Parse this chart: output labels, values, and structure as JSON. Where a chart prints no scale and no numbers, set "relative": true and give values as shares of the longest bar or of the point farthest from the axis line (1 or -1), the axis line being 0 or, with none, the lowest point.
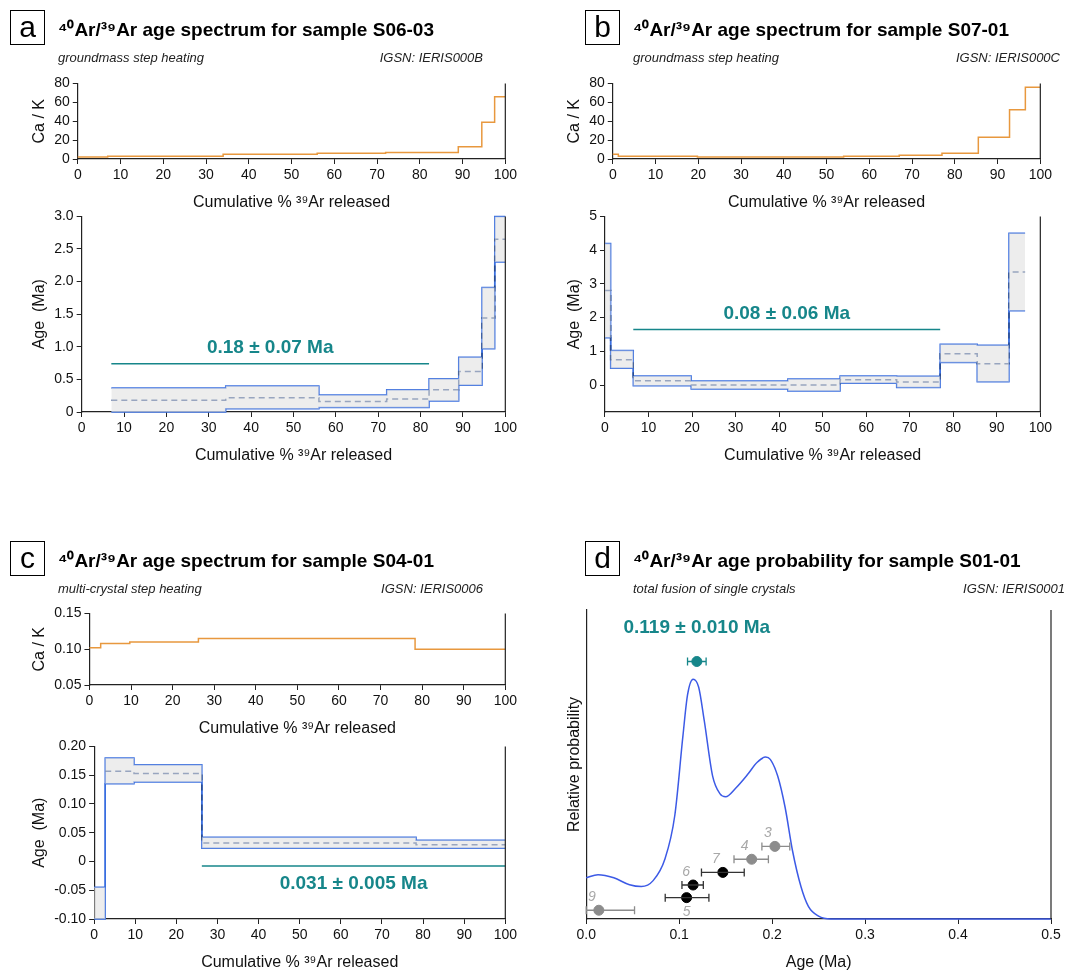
{
  "chart_data": [
    {
      "type": "step",
      "title": "⁴⁰Ar/³⁹Ar age spectrum for sample S06-03",
      "subtitle": "groundmass step heating",
      "annotations": [
        "a",
        "IGSN: IERIS000B"
      ],
      "xlabel": "Cumulative % ³⁹Ar released",
      "ylabel": "Ca / K",
      "xlim": [
        0,
        100
      ],
      "xticks": [
        0,
        10,
        20,
        30,
        40,
        50,
        60,
        70,
        80,
        90,
        100
      ],
      "ylim": [
        0,
        80
      ],
      "yticks": [
        0,
        20,
        40,
        60,
        80
      ],
      "series": [
        {
          "color": "#e8983e",
          "x": [
            0,
            7,
            34,
            56,
            72,
            89,
            94.5,
            97.5,
            100
          ],
          "values": [
            2,
            3,
            5,
            6,
            7,
            13,
            39,
            66,
            66
          ]
        }
      ]
    },
    {
      "type": "step",
      "xlabel": "Cumulative % ³⁹Ar released",
      "ylabel": "Age  (Ma)",
      "xlim": [
        0,
        100
      ],
      "xticks": [
        0,
        10,
        20,
        30,
        40,
        50,
        60,
        70,
        80,
        90,
        100
      ],
      "ylim": [
        0,
        3
      ],
      "yticks": [
        0,
        0.5,
        {
          "value": 1,
          "label": "1.0"
        },
        1.5,
        {
          "value": 2,
          "label": "2.0"
        },
        2.5,
        {
          "value": 3,
          "label": "3.0"
        }
      ],
      "annotations": [
        {
          "text": "0.18 ± 0.07 Ma",
          "x": 44.5,
          "y": 0.74
        }
      ],
      "series": [
        {
          "color": "#2c4d8c",
          "line_style": "dashed",
          "x": [
            7,
            34,
            56,
            72,
            82,
            89,
            94.5,
            97.5,
            100
          ],
          "values": [
            0.18,
            0.22,
            0.16,
            0.2,
            0.34,
            0.62,
            1.44,
            2.65,
            2.65
          ],
          "lower": [
            0,
            0.05,
            0.07,
            0.07,
            0.17,
            0.41,
            0.97,
            2.3,
            2.3
          ],
          "upper": [
            0.37,
            0.4,
            0.26,
            0.34,
            0.51,
            0.84,
            1.91,
            3,
            3
          ]
        },
        {
          "color": "#3a6fe0",
          "x": [
            7,
            34,
            56,
            72,
            82,
            89,
            94.5,
            97.5,
            100
          ],
          "values": [
            0.37,
            0.4,
            0.26,
            0.34,
            0.51,
            0.84,
            1.91,
            3,
            3
          ]
        },
        {
          "color": "#3a6fe0",
          "x": [
            7,
            34,
            56,
            72,
            82,
            89,
            94.5,
            97.5,
            100
          ],
          "values": [
            0,
            0.05,
            0.07,
            0.07,
            0.17,
            0.41,
            0.97,
            2.3,
            2.3
          ]
        },
        {
          "type": "line",
          "color": "#16868a",
          "x": [
            7,
            82
          ],
          "values": [
            0.74,
            0.74
          ]
        }
      ]
    },
    {
      "type": "step",
      "title": "⁴⁰Ar/³⁹Ar age spectrum for sample S07-01",
      "subtitle": "groundmass step heating",
      "annotations": [
        "b",
        "IGSN: IERIS000C"
      ],
      "xlabel": "Cumulative % ³⁹Ar released",
      "ylabel": "Ca / K",
      "xlim": [
        0,
        100
      ],
      "xticks": [
        0,
        10,
        20,
        30,
        40,
        50,
        60,
        70,
        80,
        90,
        100
      ],
      "ylim": [
        0,
        80
      ],
      "yticks": [
        0,
        20,
        40,
        60,
        80
      ],
      "series": [
        {
          "color": "#e8983e",
          "x": [
            0,
            1.3,
            19.8,
            54,
            67,
            77,
            85.5,
            92.8,
            96.5,
            100
          ],
          "values": [
            5,
            3,
            2,
            3,
            4,
            6,
            23,
            52,
            76,
            76
          ]
        }
      ]
    },
    {
      "type": "step",
      "xlabel": "Cumulative % ³⁹Ar released",
      "ylabel": "Age  (Ma)",
      "xlim": [
        0,
        100
      ],
      "xticks": [
        0,
        10,
        20,
        30,
        40,
        50,
        60,
        70,
        80,
        90,
        100
      ],
      "ylim": [
        -0.8,
        5
      ],
      "yticks": [
        0,
        1,
        2,
        3,
        4,
        5
      ],
      "annotations": [
        {
          "text": "0.08 ± 0.06 Ma",
          "x": 41.75,
          "y": 1.65
        }
      ],
      "series": [
        {
          "color": "#2c4d8c",
          "line_style": "dashed",
          "x": [
            0,
            1.3,
            6.5,
            19.8,
            42,
            54,
            67,
            77,
            85.5,
            92.8,
            96.5
          ],
          "values": [
            2.8,
            0.75,
            0.13,
            0,
            0,
            0.16,
            0.09,
            0.93,
            0.63,
            3.35,
            3.35
          ],
          "lower": [
            1.4,
            0.5,
            -0.02,
            -0.12,
            -0.18,
            0.05,
            -0.07,
            0.67,
            0.1,
            2.2,
            2.2
          ],
          "upper": [
            4.2,
            1.02,
            0.27,
            0.12,
            0.18,
            0.27,
            0.26,
            1.21,
            1.18,
            4.5,
            4.5
          ]
        },
        {
          "color": "#3a6fe0",
          "x": [
            0,
            1.3,
            6.5,
            19.8,
            42,
            54,
            67,
            77,
            85.5,
            92.8,
            96.5
          ],
          "values": [
            4.2,
            1.02,
            0.27,
            0.12,
            0.18,
            0.27,
            0.26,
            1.21,
            1.18,
            4.5,
            4.5
          ]
        },
        {
          "color": "#3a6fe0",
          "x": [
            0,
            1.3,
            6.5,
            19.8,
            42,
            54,
            67,
            77,
            85.5,
            92.8,
            96.5
          ],
          "values": [
            1.4,
            0.5,
            -0.02,
            -0.12,
            -0.18,
            0.05,
            -0.07,
            0.67,
            0.1,
            2.2,
            2.2
          ]
        },
        {
          "type": "line",
          "color": "#16868a",
          "x": [
            6.5,
            77
          ],
          "values": [
            1.65,
            1.65
          ]
        }
      ]
    },
    {
      "type": "step",
      "title": "⁴⁰Ar/³⁹Ar age spectrum for sample S04-01",
      "subtitle": "multi-crystal step heating",
      "annotations": [
        "c",
        "IGSN: IERIS0006"
      ],
      "xlabel": "Cumulative % ³⁹Ar released",
      "ylabel": "Ca / K",
      "xlim": [
        0,
        100
      ],
      "xticks": [
        0,
        10,
        20,
        30,
        40,
        50,
        60,
        70,
        80,
        90,
        100
      ],
      "ylim": [
        0.05,
        0.15
      ],
      "yticks": [
        0.05,
        {
          "value": 0.1,
          "label": "0.10"
        },
        0.15
      ],
      "series": [
        {
          "color": "#e8983e",
          "x": [
            0,
            2.7,
            9.7,
            26.2,
            78.3,
            100
          ],
          "values": [
            0.102,
            0.108,
            0.11,
            0.115,
            0.1,
            0.1
          ]
        }
      ]
    },
    {
      "type": "step",
      "xlabel": "Cumulative % ³⁹Ar released",
      "ylabel": "Age  (Ma)",
      "xlim": [
        0,
        100
      ],
      "xticks": [
        0,
        10,
        20,
        30,
        40,
        50,
        60,
        70,
        80,
        90,
        100
      ],
      "ylim": [
        -0.1,
        0.2
      ],
      "yticks": [
        {
          "value": -0.1,
          "label": "-0.10"
        },
        -0.05,
        0,
        0.05,
        {
          "value": 0.1,
          "label": "0.10"
        },
        0.15,
        {
          "value": 0.2,
          "label": "0.20"
        }
      ],
      "annotations": [
        {
          "text": "0.031 ± 0.005 Ma",
          "x": 63.1,
          "y": -0.008
        }
      ],
      "series": [
        {
          "color": "#2c4d8c",
          "line_style": "dashed",
          "x": [
            0,
            2.7,
            9.7,
            26.2,
            78.3,
            100
          ],
          "values": [
            null,
            0.157,
            0.153,
            0.032,
            0.029,
            0.029
          ],
          "lower": [
            -0.1,
            0.135,
            0.138,
            0.023,
            0.023,
            0.023
          ],
          "upper": [
            -0.045,
            0.18,
            0.168,
            0.042,
            0.037,
            0.037
          ]
        },
        {
          "color": "#3a6fe0",
          "x": [
            0,
            2.7,
            9.7,
            26.2,
            78.3,
            100
          ],
          "values": [
            -0.045,
            0.18,
            0.168,
            0.042,
            0.037,
            0.037
          ]
        },
        {
          "color": "#3a6fe0",
          "x": [
            0,
            2.7,
            9.7,
            26.2,
            78.3,
            100
          ],
          "values": [
            -0.1,
            0.135,
            0.138,
            0.023,
            0.023,
            0.023
          ]
        },
        {
          "type": "line",
          "color": "#16868a",
          "x": [
            26.2,
            100
          ],
          "values": [
            -0.008,
            -0.008
          ]
        }
      ]
    },
    {
      "type": "line",
      "title": "⁴⁰Ar/³⁹Ar age probability for sample S01-01",
      "subtitle": "total fusion of single crystals",
      "xlabel": "Age (Ma)",
      "ylabel": "Relative probability",
      "relative": true,
      "xlim": [
        0,
        0.5
      ],
      "xticks": [
        {
          "value": 0,
          "label": "0.0"
        },
        0.1,
        0.2,
        0.3,
        0.4,
        0.5
      ],
      "annotations": [
        "d",
        "IGSN: IERIS0001",
        {
          "text": "0.119 ± 0.010 Ma",
          "x": 0.119,
          "y": 1
        },
        {
          "text": "9",
          "x": 0.0136,
          "y": 0.034
        },
        {
          "text": "5",
          "x": 0.108,
          "y": 0.083
        },
        {
          "text": "6",
          "x": 0.115,
          "y": 0.132
        },
        {
          "text": "7",
          "x": 0.147,
          "y": 0.181
        },
        {
          "text": "4",
          "x": 0.178,
          "y": 0.232
        },
        {
          "text": "3",
          "x": 0.203,
          "y": 0.282
        }
      ],
      "series": [
        {
          "color": "#3c5ae6",
          "x": [
            0,
            0.0127,
            0.0297,
            0.0466,
            0.0593,
            0.072,
            0.0847,
            0.0953,
            0.104,
            0.109,
            0.115,
            0.121,
            0.127,
            0.136,
            0.144,
            0.15,
            0.161,
            0.174,
            0.184,
            0.193,
            0.198,
            0.206,
            0.214,
            0.222,
            0.231,
            0.239,
            0.25,
            0.263,
            0.28,
            0.5
          ],
          "values": [
            0.16,
            0.172,
            0.16,
            0.133,
            0.126,
            0.149,
            0.233,
            0.402,
            0.709,
            0.87,
            0.931,
            0.9,
            0.77,
            0.555,
            0.486,
            0.475,
            0.509,
            0.563,
            0.609,
            0.629,
            0.62,
            0.555,
            0.433,
            0.264,
            0.126,
            0.049,
            0.011,
            0,
            0,
            0
          ]
        },
        {
          "type": "scatter",
          "marker": "circle",
          "color": "#8c8c8c",
          "x": [
            0.0136,
            0.178,
            0.203
          ],
          "values": [
            0.034,
            0.232,
            0.282
          ],
          "xerrors": [
            [
              0,
              0.052
            ],
            [
              0.159,
              0.196
            ],
            [
              0.189,
              0.219
            ]
          ]
        },
        {
          "type": "scatter",
          "marker": "circle",
          "color": "#000000",
          "x": [
            0.108,
            0.115,
            0.147
          ],
          "values": [
            0.083,
            0.132,
            0.181
          ],
          "xerrors": [
            [
              0.085,
              0.132
            ],
            [
              0.103,
              0.126
            ],
            [
              0.124,
              0.17
            ]
          ]
        },
        {
          "type": "scatter",
          "marker": "circle",
          "color": "#16868a",
          "x": [
            0.119
          ],
          "values": [
            1
          ],
          "xerrors": [
            0.01
          ]
        }
      ]
    }
  ]
}
